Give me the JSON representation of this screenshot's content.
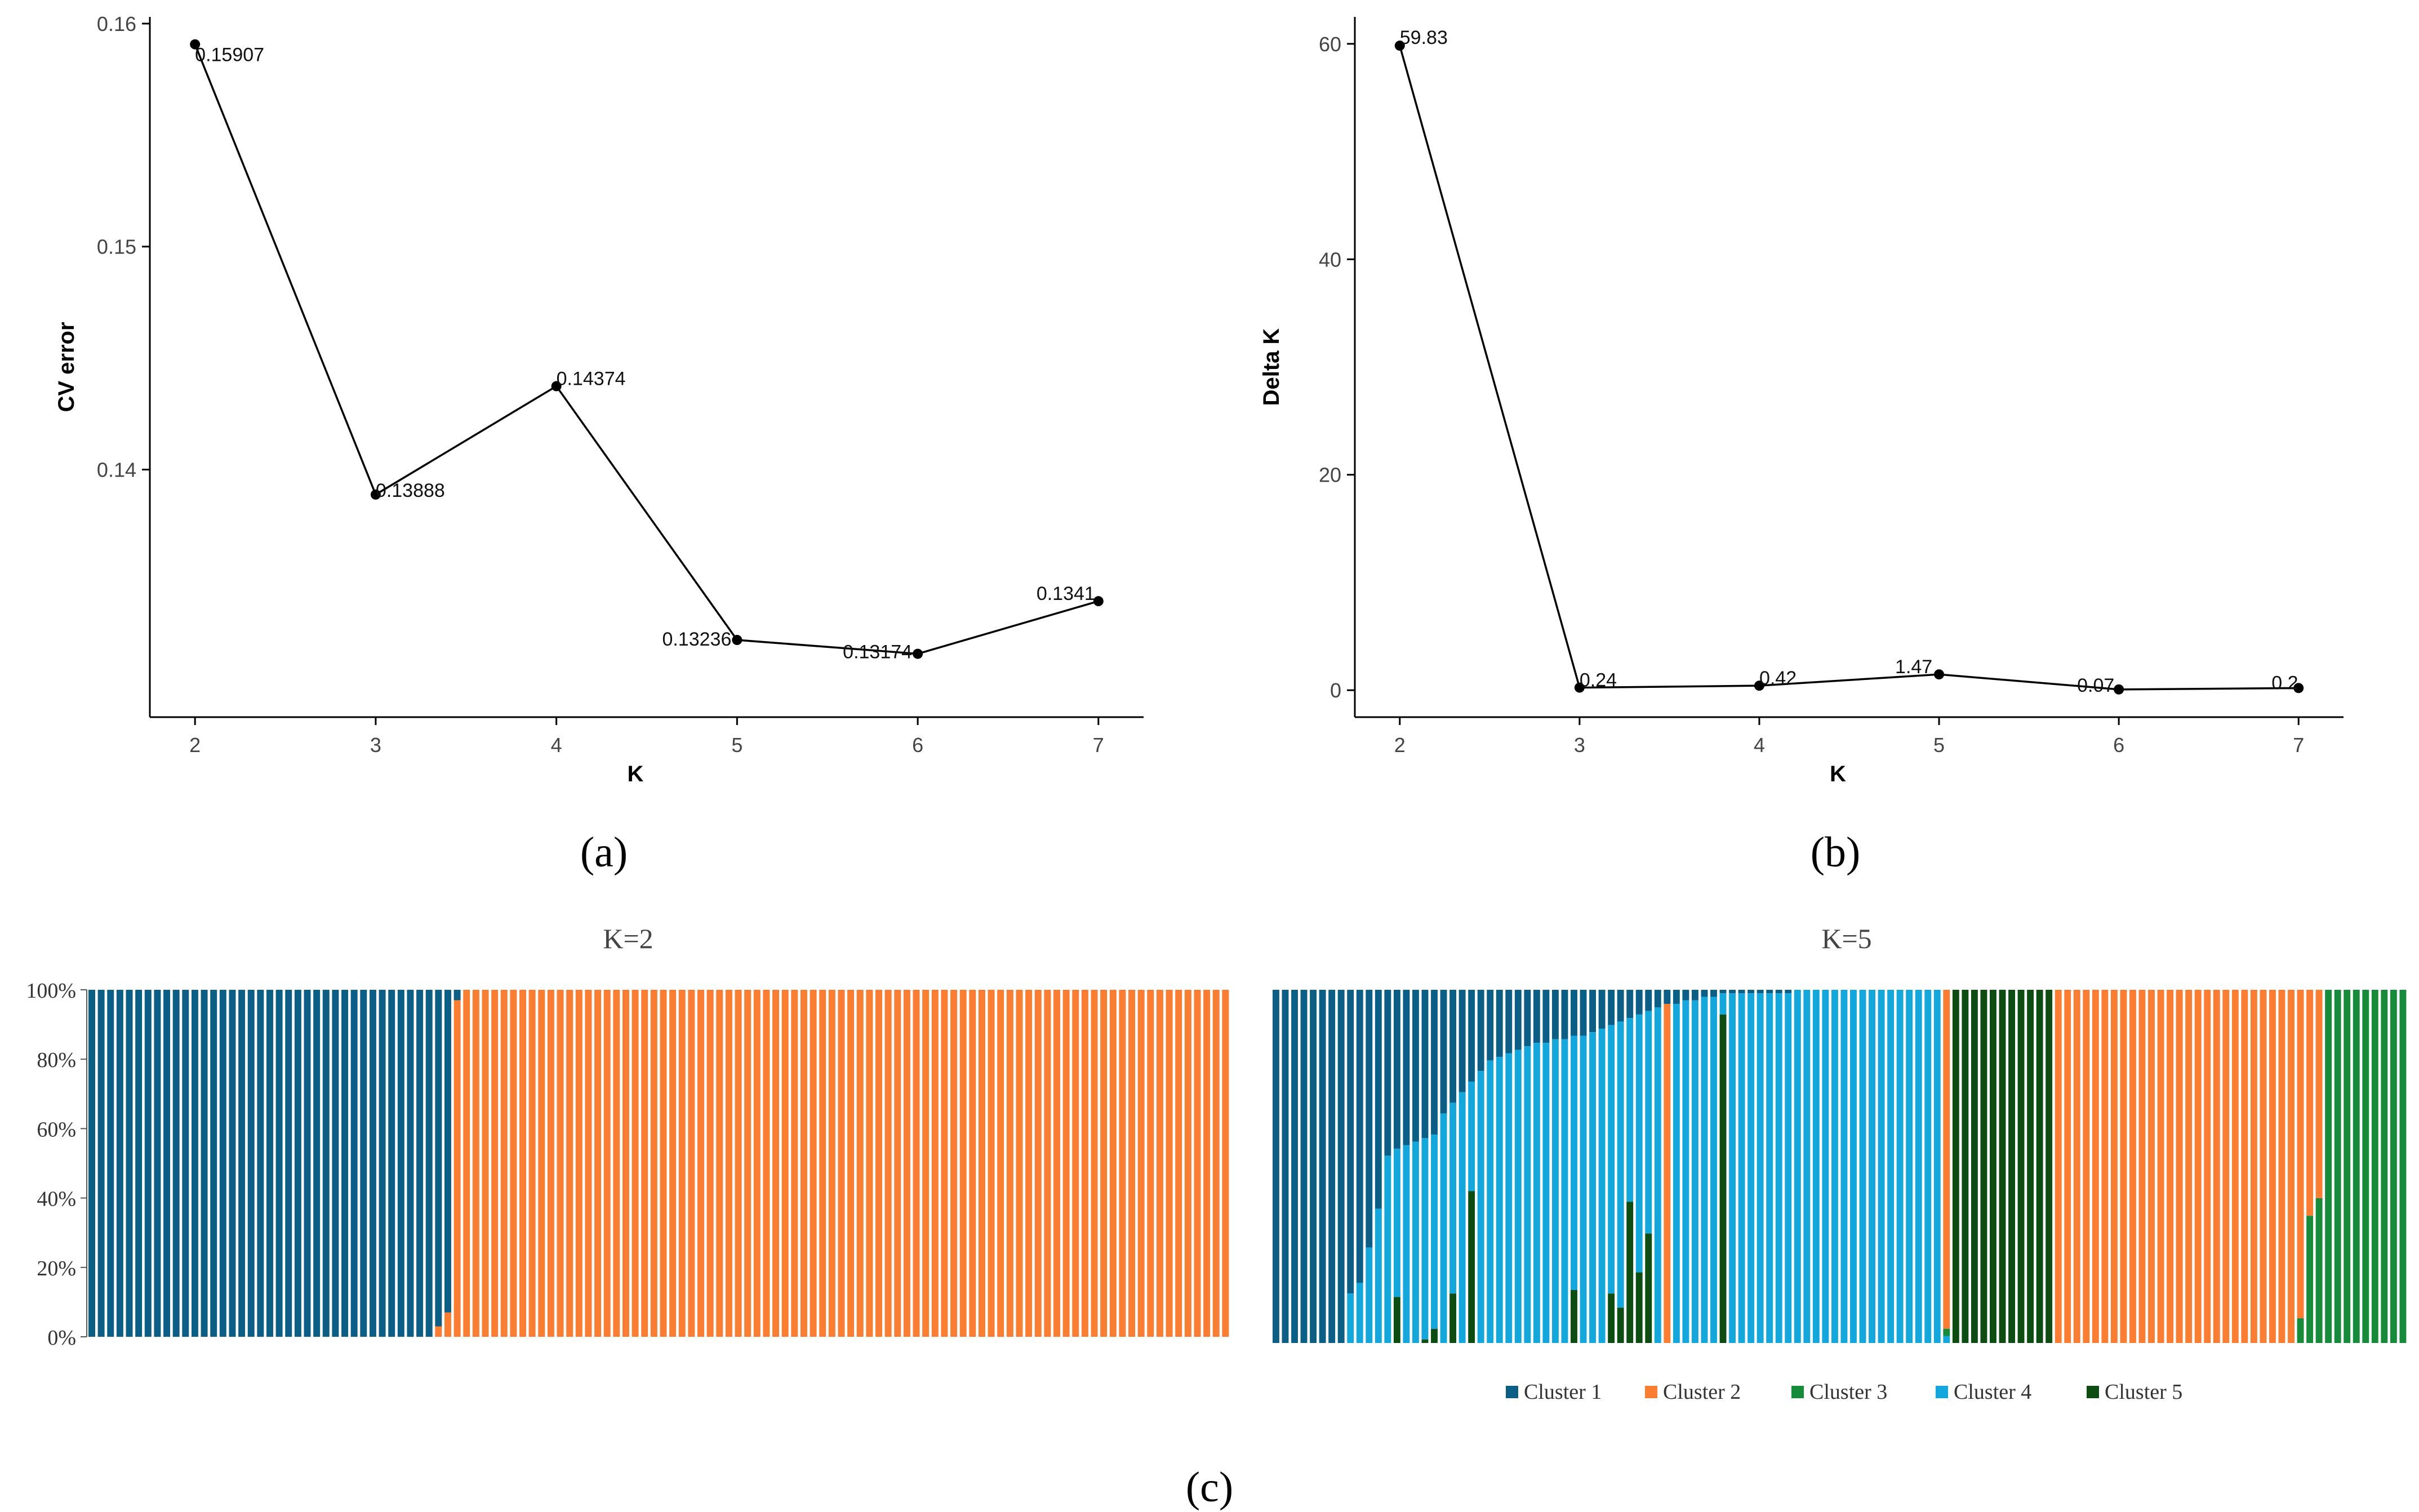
{
  "colors": {
    "cluster1": "#0b5f86",
    "cluster2": "#fb7d31",
    "cluster3": "#168b3a",
    "cluster4": "#12a8de",
    "cluster5": "#0d4d12",
    "line": "#000000",
    "axis": "#000000"
  },
  "chart_data": [
    {
      "id": "a",
      "type": "line",
      "panel_label": "(a)",
      "xlabel": "K",
      "ylabel": "CV error",
      "x": [
        2,
        3,
        4,
        5,
        6,
        7
      ],
      "y": [
        0.15907,
        0.13888,
        0.14374,
        0.13236,
        0.13174,
        0.1341
      ],
      "point_labels": [
        "0.15907",
        "0.13888",
        "0.14374",
        "0.13236",
        "0.13174",
        "0.1341"
      ],
      "xticks": [
        "2",
        "3",
        "4",
        "5",
        "6",
        "7"
      ],
      "yticks": [
        0.14,
        0.15,
        0.16
      ],
      "ytick_labels": [
        "0.14",
        "0.15",
        "0.16"
      ],
      "xlim": [
        1.75,
        7.25
      ],
      "ylim": [
        0.1289,
        0.1603
      ]
    },
    {
      "id": "b",
      "type": "line",
      "panel_label": "(b)",
      "xlabel": "K",
      "ylabel": "Delta K",
      "x": [
        2,
        3,
        4,
        5,
        6,
        7
      ],
      "y": [
        59.83,
        0.24,
        0.42,
        1.47,
        0.07,
        0.2
      ],
      "point_labels": [
        "59.83",
        "0.24",
        "0.42",
        "1.47",
        "0.07",
        "0.2"
      ],
      "xticks": [
        "2",
        "3",
        "4",
        "5",
        "6",
        "7"
      ],
      "yticks": [
        0,
        20,
        40,
        60
      ],
      "ytick_labels": [
        "0",
        "20",
        "40",
        "60"
      ],
      "xlim": [
        1.75,
        7.25
      ],
      "ylim": [
        -2.5,
        62.5
      ]
    },
    {
      "id": "c1",
      "type": "bar",
      "stacked": true,
      "title": "K=2",
      "yticks": [
        0,
        20,
        40,
        60,
        80,
        100
      ],
      "ytick_labels": [
        "0%",
        "20%",
        "40%",
        "60%",
        "80%",
        "100%"
      ],
      "ylim": [
        0,
        100
      ],
      "n_individuals": 122,
      "segments": [
        {
          "count": 37,
          "values": [
            100,
            0
          ]
        },
        {
          "count": 1,
          "values": [
            97,
            3
          ]
        },
        {
          "count": 1,
          "values": [
            93,
            7
          ]
        },
        {
          "count": 1,
          "values": [
            3,
            97
          ]
        },
        {
          "count": 82,
          "values": [
            0,
            100
          ]
        }
      ],
      "series_names": [
        "Cluster 1",
        "Cluster 2"
      ]
    },
    {
      "id": "c2",
      "type": "bar",
      "stacked": true,
      "title": "K=5",
      "ylim": [
        0,
        100
      ],
      "n_individuals": 122,
      "series_names": [
        "Cluster 1",
        "Cluster 2",
        "Cluster 3",
        "Cluster 4",
        "Cluster 5"
      ],
      "bars": [
        [
          100,
          0,
          0,
          0,
          0
        ],
        [
          100,
          0,
          0,
          0,
          0
        ],
        [
          100,
          0,
          0,
          0,
          0
        ],
        [
          100,
          0,
          0,
          0,
          0
        ],
        [
          100,
          0,
          0,
          0,
          0
        ],
        [
          100,
          0,
          0,
          0,
          0
        ],
        [
          100,
          0,
          0,
          0,
          0
        ],
        [
          100,
          0,
          0,
          0,
          0
        ],
        [
          86,
          0,
          0,
          14,
          0
        ],
        [
          83,
          0,
          0,
          17,
          0
        ],
        [
          73,
          0,
          0,
          27,
          0
        ],
        [
          62,
          0,
          0,
          38,
          0
        ],
        [
          47,
          0,
          0,
          53,
          0
        ],
        [
          45,
          0,
          0,
          42,
          13
        ],
        [
          44,
          0,
          0,
          56,
          0
        ],
        [
          43,
          0,
          0,
          57,
          0
        ],
        [
          42,
          0,
          0,
          57,
          1
        ],
        [
          41,
          0,
          0,
          55,
          4
        ],
        [
          35,
          0,
          0,
          65,
          0
        ],
        [
          32,
          0,
          0,
          54,
          14
        ],
        [
          29,
          0,
          0,
          71,
          0
        ],
        [
          26,
          0,
          0,
          31,
          43
        ],
        [
          23,
          0,
          0,
          77,
          0
        ],
        [
          20,
          0,
          0,
          80,
          0
        ],
        [
          19,
          0,
          0,
          81,
          0
        ],
        [
          18,
          0,
          0,
          82,
          0
        ],
        [
          17,
          0,
          0,
          83,
          0
        ],
        [
          16,
          0,
          0,
          84,
          0
        ],
        [
          15,
          0,
          0,
          85,
          0
        ],
        [
          15,
          0,
          0,
          85,
          0
        ],
        [
          14,
          0,
          0,
          86,
          0
        ],
        [
          14,
          0,
          0,
          86,
          0
        ],
        [
          13,
          0,
          0,
          72,
          15
        ],
        [
          13,
          0,
          0,
          87,
          0
        ],
        [
          12,
          0,
          0,
          88,
          0
        ],
        [
          11,
          0,
          0,
          89,
          0
        ],
        [
          10,
          0,
          0,
          76,
          14
        ],
        [
          9,
          0,
          0,
          81,
          10
        ],
        [
          8,
          0,
          0,
          52,
          40
        ],
        [
          7,
          0,
          0,
          73,
          20
        ],
        [
          6,
          0,
          0,
          63,
          31
        ],
        [
          5,
          0,
          0,
          95,
          0
        ],
        [
          4,
          96,
          0,
          0,
          0
        ],
        [
          4,
          0,
          0,
          96,
          0
        ],
        [
          3,
          0,
          0,
          97,
          0
        ],
        [
          3,
          0,
          0,
          97,
          0
        ],
        [
          2,
          0,
          0,
          98,
          0
        ],
        [
          2,
          0,
          0,
          98,
          0
        ],
        [
          1,
          0,
          0,
          6,
          93
        ],
        [
          1,
          0,
          0,
          99,
          0
        ],
        [
          1,
          0,
          0,
          99,
          0
        ],
        [
          1,
          0,
          0,
          99,
          0
        ],
        [
          1,
          0,
          0,
          99,
          0
        ],
        [
          1,
          0,
          0,
          99,
          0
        ],
        [
          1,
          0,
          0,
          99,
          0
        ],
        [
          1,
          0,
          0,
          99,
          0
        ],
        [
          0,
          0,
          0,
          100,
          0
        ],
        [
          0,
          0,
          0,
          100,
          0
        ],
        [
          0,
          0,
          0,
          100,
          0
        ],
        [
          0,
          0,
          0,
          100,
          0
        ],
        [
          0,
          0,
          0,
          100,
          0
        ],
        [
          0,
          0,
          0,
          100,
          0
        ],
        [
          0,
          0,
          0,
          100,
          0
        ],
        [
          0,
          0,
          0,
          100,
          0
        ],
        [
          0,
          0,
          0,
          100,
          0
        ],
        [
          0,
          0,
          0,
          100,
          0
        ],
        [
          0,
          0,
          0,
          100,
          0
        ],
        [
          0,
          0,
          0,
          100,
          0
        ],
        [
          0,
          0,
          0,
          100,
          0
        ],
        [
          0,
          0,
          0,
          100,
          0
        ],
        [
          0,
          0,
          0,
          100,
          0
        ],
        [
          0,
          0,
          0,
          100,
          0
        ],
        [
          0,
          96,
          2,
          2,
          0
        ],
        [
          0,
          0,
          0,
          0,
          100
        ],
        [
          0,
          0,
          0,
          0,
          100
        ],
        [
          0,
          0,
          0,
          0,
          100
        ],
        [
          0,
          0,
          0,
          0,
          100
        ],
        [
          0,
          0,
          0,
          0,
          100
        ],
        [
          0,
          0,
          0,
          0,
          100
        ],
        [
          0,
          0,
          0,
          0,
          100
        ],
        [
          0,
          0,
          0,
          0,
          100
        ],
        [
          0,
          0,
          0,
          0,
          100
        ],
        [
          0,
          0,
          0,
          0,
          100
        ],
        [
          0,
          0,
          0,
          0,
          100
        ],
        [
          0,
          100,
          0,
          0,
          0
        ],
        [
          0,
          100,
          0,
          0,
          0
        ],
        [
          0,
          100,
          0,
          0,
          0
        ],
        [
          0,
          100,
          0,
          0,
          0
        ],
        [
          0,
          100,
          0,
          0,
          0
        ],
        [
          0,
          100,
          0,
          0,
          0
        ],
        [
          0,
          100,
          0,
          0,
          0
        ],
        [
          0,
          100,
          0,
          0,
          0
        ],
        [
          0,
          100,
          0,
          0,
          0
        ],
        [
          0,
          100,
          0,
          0,
          0
        ],
        [
          0,
          100,
          0,
          0,
          0
        ],
        [
          0,
          100,
          0,
          0,
          0
        ],
        [
          0,
          100,
          0,
          0,
          0
        ],
        [
          0,
          100,
          0,
          0,
          0
        ],
        [
          0,
          100,
          0,
          0,
          0
        ],
        [
          0,
          100,
          0,
          0,
          0
        ],
        [
          0,
          100,
          0,
          0,
          0
        ],
        [
          0,
          100,
          0,
          0,
          0
        ],
        [
          0,
          100,
          0,
          0,
          0
        ],
        [
          0,
          100,
          0,
          0,
          0
        ],
        [
          0,
          100,
          0,
          0,
          0
        ],
        [
          0,
          100,
          0,
          0,
          0
        ],
        [
          0,
          100,
          0,
          0,
          0
        ],
        [
          0,
          100,
          0,
          0,
          0
        ],
        [
          0,
          100,
          0,
          0,
          0
        ],
        [
          0,
          100,
          0,
          0,
          0
        ],
        [
          0,
          93,
          7,
          0,
          0
        ],
        [
          0,
          64,
          36,
          0,
          0
        ],
        [
          0,
          59,
          41,
          0,
          0
        ],
        [
          0,
          0,
          100,
          0,
          0
        ],
        [
          0,
          0,
          100,
          0,
          0
        ],
        [
          0,
          0,
          100,
          0,
          0
        ],
        [
          0,
          0,
          100,
          0,
          0
        ],
        [
          0,
          0,
          100,
          0,
          0
        ],
        [
          0,
          0,
          100,
          0,
          0
        ],
        [
          0,
          0,
          100,
          0,
          0
        ],
        [
          0,
          0,
          100,
          0,
          0
        ],
        [
          0,
          0,
          100,
          0,
          0
        ]
      ],
      "legend": [
        "Cluster 1",
        "Cluster 2",
        "Cluster 3",
        "Cluster 4",
        "Cluster 5"
      ],
      "legend_position": "bottom"
    }
  ],
  "panel_c_label": "(c)"
}
